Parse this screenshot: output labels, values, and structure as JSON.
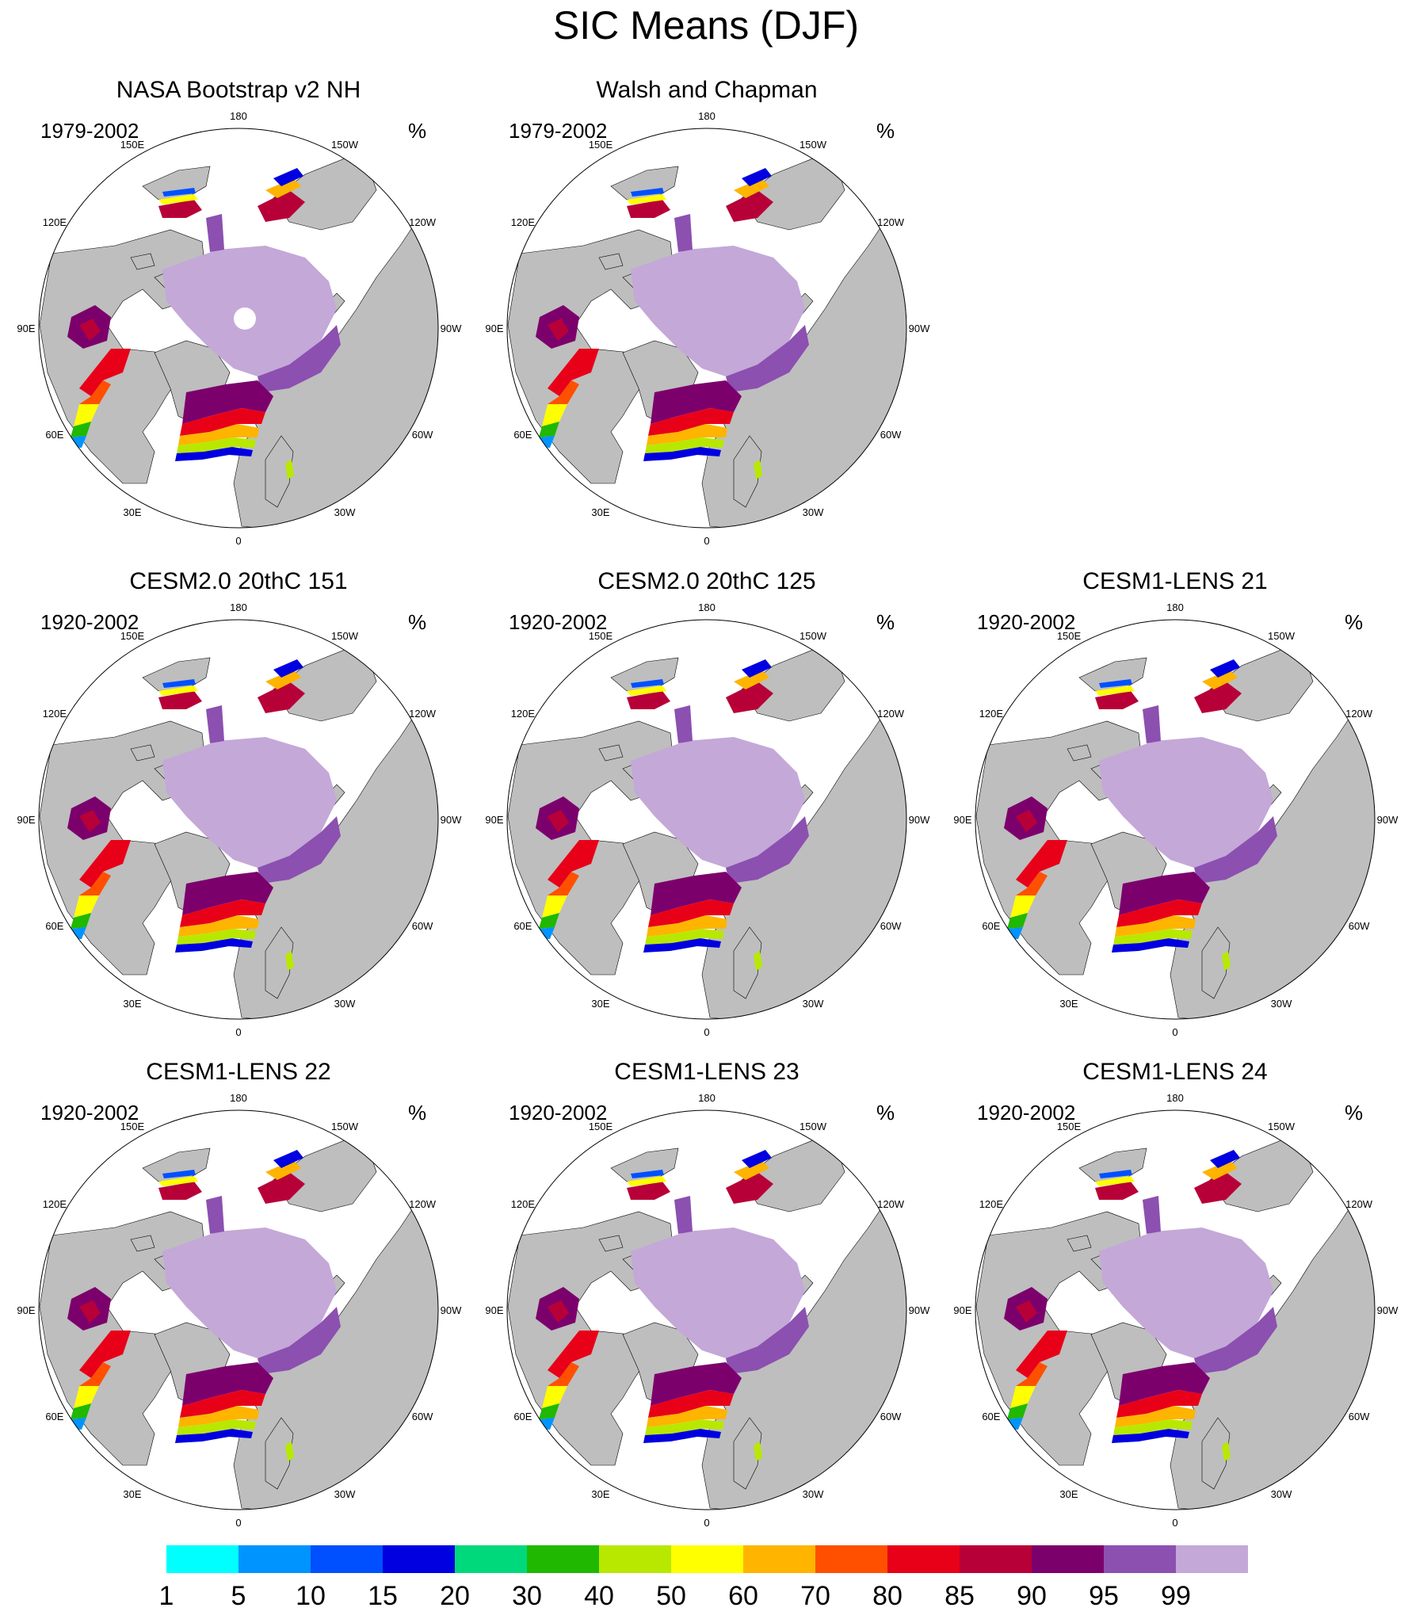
{
  "title": "SIC Means (DJF)",
  "units_label": "%",
  "longitude_labels": [
    "180",
    "150E",
    "120E",
    "90E",
    "60E",
    "30E",
    "0",
    "30W",
    "60W",
    "90W",
    "120W",
    "150W"
  ],
  "panels": [
    {
      "title": "NASA Bootstrap v2 NH",
      "years": "1979-2002",
      "pole_hole": true
    },
    {
      "title": "Walsh and Chapman",
      "years": "1979-2002",
      "pole_hole": false
    },
    {
      "title": "CESM2.0 20thC 151",
      "years": "1920-2002",
      "pole_hole": false
    },
    {
      "title": "CESM2.0 20thC 125",
      "years": "1920-2002",
      "pole_hole": false
    },
    {
      "title": "CESM1-LENS 21",
      "years": "1920-2002",
      "pole_hole": false
    },
    {
      "title": "CESM1-LENS 22",
      "years": "1920-2002",
      "pole_hole": false
    },
    {
      "title": "CESM1-LENS 23",
      "years": "1920-2002",
      "pole_hole": false
    },
    {
      "title": "CESM1-LENS 24",
      "years": "1920-2002",
      "pole_hole": false
    }
  ],
  "colorbar": {
    "levels": [
      "1",
      "5",
      "10",
      "15",
      "20",
      "30",
      "40",
      "50",
      "60",
      "70",
      "80",
      "85",
      "90",
      "95",
      "99"
    ],
    "colors": [
      "#00ffff",
      "#0094ff",
      "#0050ff",
      "#0000e0",
      "#00d87c",
      "#20b800",
      "#b8e800",
      "#ffff00",
      "#ffb400",
      "#ff5000",
      "#e80018",
      "#b80038",
      "#7c006c",
      "#8c50b0",
      "#c4a8d8"
    ]
  },
  "map_colors": {
    "land": "#bebebe",
    "ocean": "#ffffff",
    "outline": "#000000"
  }
}
